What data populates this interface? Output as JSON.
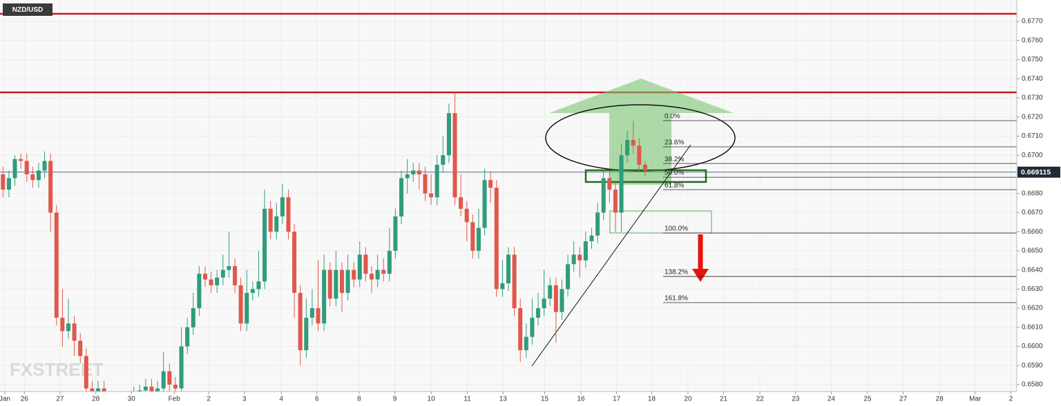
{
  "chart_data": {
    "type": "candlestick",
    "title": "NZD/USD",
    "watermark": "FXSTREET",
    "up_color": "#2f9c7c",
    "down_color": "#e0584b",
    "xlim": [
      -0.5,
      170.5
    ],
    "ylim": [
      0.65764,
      0.67812
    ],
    "grid": true,
    "yticks": [
      {
        "value": 0.658,
        "label": "0.6580"
      },
      {
        "value": 0.659,
        "label": "0.6590"
      },
      {
        "value": 0.66,
        "label": "0.6600"
      },
      {
        "value": 0.661,
        "label": "0.6610"
      },
      {
        "value": 0.662,
        "label": "0.6620"
      },
      {
        "value": 0.663,
        "label": "0.6630"
      },
      {
        "value": 0.664,
        "label": "0.6640"
      },
      {
        "value": 0.665,
        "label": "0.6650"
      },
      {
        "value": 0.666,
        "label": "0.6660"
      },
      {
        "value": 0.667,
        "label": "0.6670"
      },
      {
        "value": 0.668,
        "label": "0.6680"
      },
      {
        "value": 0.669,
        "label": "0.6690"
      },
      {
        "value": 0.67,
        "label": "0.6700"
      },
      {
        "value": 0.671,
        "label": "0.6710"
      },
      {
        "value": 0.672,
        "label": "0.6720"
      },
      {
        "value": 0.673,
        "label": "0.6730"
      },
      {
        "value": 0.674,
        "label": "0.6740"
      },
      {
        "value": 0.675,
        "label": "0.6750"
      },
      {
        "value": 0.676,
        "label": "0.6760"
      },
      {
        "value": 0.677,
        "label": "0.6770"
      }
    ],
    "xticks": [
      {
        "value": 0.3,
        "label": "Jan"
      },
      {
        "value": 3.6,
        "label": "26"
      },
      {
        "value": 9.6,
        "label": "27"
      },
      {
        "value": 15.6,
        "label": "28"
      },
      {
        "value": 21.6,
        "label": "30"
      },
      {
        "value": 28.8,
        "label": "Feb"
      },
      {
        "value": 34.6,
        "label": "2"
      },
      {
        "value": 40.6,
        "label": "3"
      },
      {
        "value": 46.8,
        "label": "4"
      },
      {
        "value": 52.8,
        "label": "6"
      },
      {
        "value": 59.9,
        "label": "8"
      },
      {
        "value": 65.9,
        "label": "9"
      },
      {
        "value": 72.0,
        "label": "10"
      },
      {
        "value": 78.1,
        "label": "11"
      },
      {
        "value": 84.1,
        "label": "13"
      },
      {
        "value": 91.1,
        "label": "15"
      },
      {
        "value": 97.2,
        "label": "16"
      },
      {
        "value": 103.2,
        "label": "17"
      },
      {
        "value": 109.1,
        "label": "18"
      },
      {
        "value": 115.2,
        "label": "20"
      },
      {
        "value": 121.2,
        "label": "21"
      },
      {
        "value": 127.3,
        "label": "22"
      },
      {
        "value": 133.3,
        "label": "23"
      },
      {
        "value": 139.3,
        "label": "24"
      },
      {
        "value": 145.4,
        "label": "25"
      },
      {
        "value": 151.4,
        "label": "27"
      },
      {
        "value": 157.5,
        "label": "28"
      },
      {
        "value": 163.5,
        "label": "Mar"
      },
      {
        "value": 169.5,
        "label": "2"
      }
    ],
    "x": [
      0,
      1,
      2,
      3,
      4,
      5,
      6,
      7,
      8,
      9,
      10,
      11,
      12,
      13,
      14,
      15,
      16,
      17,
      18,
      19,
      20,
      21,
      22,
      23,
      24,
      25,
      26,
      27,
      28,
      29,
      30,
      31,
      32,
      33,
      34,
      35,
      36,
      37,
      38,
      39,
      40,
      41,
      42,
      43,
      44,
      45,
      46,
      47,
      48,
      49,
      50,
      51,
      52,
      53,
      54,
      55,
      56,
      57,
      58,
      59,
      60,
      61,
      62,
      63,
      64,
      65,
      66,
      67,
      68,
      69,
      70,
      71,
      72,
      73,
      74,
      75,
      76,
      77,
      78,
      79,
      80,
      81,
      82,
      83,
      84,
      85,
      86,
      87,
      88,
      89,
      90,
      91,
      92,
      93,
      94,
      95,
      96,
      97,
      98,
      99,
      100,
      101,
      102,
      103,
      104,
      105,
      106,
      107,
      108
    ],
    "ohlc": [
      [
        0.669,
        0.6694,
        0.6678,
        0.6682
      ],
      [
        0.6682,
        0.6692,
        0.6678,
        0.6688
      ],
      [
        0.6688,
        0.67,
        0.6684,
        0.6698
      ],
      [
        0.6698,
        0.6701,
        0.6693,
        0.6697
      ],
      [
        0.6697,
        0.6701,
        0.6686,
        0.669
      ],
      [
        0.669,
        0.6694,
        0.6683,
        0.6687
      ],
      [
        0.6687,
        0.6696,
        0.6683,
        0.6692
      ],
      [
        0.6692,
        0.6702,
        0.6688,
        0.6697
      ],
      [
        0.6697,
        0.6701,
        0.666,
        0.667
      ],
      [
        0.667,
        0.6674,
        0.6611,
        0.6615
      ],
      [
        0.6615,
        0.663,
        0.66,
        0.6608
      ],
      [
        0.6608,
        0.6625,
        0.6604,
        0.6612
      ],
      [
        0.6612,
        0.6616,
        0.6595,
        0.6603
      ],
      [
        0.6603,
        0.6607,
        0.6591,
        0.6595
      ],
      [
        0.6595,
        0.6599,
        0.6574,
        0.6578
      ],
      [
        0.6578,
        0.6582,
        0.6571,
        0.6575
      ],
      [
        0.6575,
        0.6582,
        0.6571,
        0.6578
      ],
      [
        0.6578,
        0.6582,
        0.6568,
        0.6572
      ],
      [
        0.6572,
        0.6576,
        0.6566,
        0.657
      ],
      [
        0.657,
        0.6574,
        0.6564,
        0.6568
      ],
      [
        0.6568,
        0.6574,
        0.6564,
        0.657
      ],
      [
        0.657,
        0.6576,
        0.6566,
        0.6572
      ],
      [
        0.6572,
        0.6579,
        0.6568,
        0.6575
      ],
      [
        0.6575,
        0.658,
        0.6571,
        0.6577
      ],
      [
        0.6577,
        0.6583,
        0.6573,
        0.6579
      ],
      [
        0.6579,
        0.6583,
        0.6572,
        0.6576
      ],
      [
        0.6576,
        0.6582,
        0.6572,
        0.6578
      ],
      [
        0.6578,
        0.6597,
        0.6574,
        0.6587
      ],
      [
        0.6587,
        0.6591,
        0.6576,
        0.658
      ],
      [
        0.658,
        0.6584,
        0.6574,
        0.6578
      ],
      [
        0.6578,
        0.661,
        0.6574,
        0.66
      ],
      [
        0.66,
        0.6615,
        0.6596,
        0.661
      ],
      [
        0.661,
        0.6628,
        0.6606,
        0.662
      ],
      [
        0.662,
        0.6642,
        0.6616,
        0.6638
      ],
      [
        0.6638,
        0.6642,
        0.6631,
        0.6635
      ],
      [
        0.6635,
        0.6639,
        0.6628,
        0.6632
      ],
      [
        0.6632,
        0.664,
        0.6628,
        0.6636
      ],
      [
        0.6636,
        0.6648,
        0.6632,
        0.664
      ],
      [
        0.664,
        0.666,
        0.6636,
        0.6642
      ],
      [
        0.6642,
        0.6646,
        0.6628,
        0.6632
      ],
      [
        0.6632,
        0.6636,
        0.6608,
        0.6612
      ],
      [
        0.6612,
        0.664,
        0.6608,
        0.6628
      ],
      [
        0.6628,
        0.6634,
        0.6624,
        0.663
      ],
      [
        0.663,
        0.665,
        0.6626,
        0.6634
      ],
      [
        0.6634,
        0.6682,
        0.663,
        0.6672
      ],
      [
        0.6672,
        0.6676,
        0.6656,
        0.666
      ],
      [
        0.666,
        0.6675,
        0.6656,
        0.6668
      ],
      [
        0.6668,
        0.6685,
        0.6664,
        0.6678
      ],
      [
        0.6678,
        0.6682,
        0.6656,
        0.666
      ],
      [
        0.666,
        0.6664,
        0.6615,
        0.6628
      ],
      [
        0.6628,
        0.6632,
        0.659,
        0.6598
      ],
      [
        0.6598,
        0.6625,
        0.6594,
        0.6615
      ],
      [
        0.6615,
        0.663,
        0.6611,
        0.662
      ],
      [
        0.662,
        0.6645,
        0.6608,
        0.6612
      ],
      [
        0.6612,
        0.6648,
        0.6608,
        0.664
      ],
      [
        0.664,
        0.6644,
        0.6621,
        0.6625
      ],
      [
        0.6625,
        0.665,
        0.6621,
        0.664
      ],
      [
        0.664,
        0.6644,
        0.6618,
        0.6628
      ],
      [
        0.6628,
        0.6648,
        0.6624,
        0.664
      ],
      [
        0.664,
        0.6644,
        0.6631,
        0.6635
      ],
      [
        0.6635,
        0.6655,
        0.6631,
        0.6648
      ],
      [
        0.6648,
        0.6652,
        0.6634,
        0.6638
      ],
      [
        0.6638,
        0.6642,
        0.6628,
        0.6635
      ],
      [
        0.6635,
        0.6648,
        0.6631,
        0.664
      ],
      [
        0.664,
        0.6646,
        0.6634,
        0.6638
      ],
      [
        0.6638,
        0.6662,
        0.6634,
        0.665
      ],
      [
        0.665,
        0.6672,
        0.6646,
        0.6668
      ],
      [
        0.6668,
        0.6692,
        0.6664,
        0.6688
      ],
      [
        0.6688,
        0.6698,
        0.668,
        0.669
      ],
      [
        0.669,
        0.6696,
        0.6686,
        0.6692
      ],
      [
        0.6692,
        0.6696,
        0.6682,
        0.669
      ],
      [
        0.669,
        0.6694,
        0.6676,
        0.668
      ],
      [
        0.668,
        0.669,
        0.6674,
        0.6678
      ],
      [
        0.6678,
        0.67,
        0.6674,
        0.6695
      ],
      [
        0.6695,
        0.671,
        0.6691,
        0.67
      ],
      [
        0.67,
        0.6727,
        0.6696,
        0.6722
      ],
      [
        0.6722,
        0.6733,
        0.6674,
        0.6678
      ],
      [
        0.6678,
        0.669,
        0.6668,
        0.6672
      ],
      [
        0.6672,
        0.6676,
        0.6655,
        0.6665
      ],
      [
        0.6665,
        0.6669,
        0.6646,
        0.665
      ],
      [
        0.665,
        0.6672,
        0.6646,
        0.6662
      ],
      [
        0.6662,
        0.6693,
        0.6658,
        0.6687
      ],
      [
        0.6687,
        0.6691,
        0.6675,
        0.6683
      ],
      [
        0.6683,
        0.6687,
        0.6626,
        0.663
      ],
      [
        0.663,
        0.6645,
        0.6626,
        0.6633
      ],
      [
        0.6633,
        0.6652,
        0.6629,
        0.6648
      ],
      [
        0.6648,
        0.6652,
        0.6616,
        0.662
      ],
      [
        0.662,
        0.6625,
        0.6592,
        0.6598
      ],
      [
        0.6598,
        0.6612,
        0.6594,
        0.6605
      ],
      [
        0.6605,
        0.6625,
        0.6601,
        0.6615
      ],
      [
        0.6615,
        0.6628,
        0.6611,
        0.662
      ],
      [
        0.662,
        0.664,
        0.6616,
        0.6625
      ],
      [
        0.6625,
        0.6636,
        0.6621,
        0.6632
      ],
      [
        0.6632,
        0.6636,
        0.6602,
        0.6618
      ],
      [
        0.6618,
        0.6635,
        0.6614,
        0.663
      ],
      [
        0.663,
        0.6648,
        0.6626,
        0.6643
      ],
      [
        0.6643,
        0.6655,
        0.6639,
        0.6648
      ],
      [
        0.6648,
        0.6652,
        0.6636,
        0.6645
      ],
      [
        0.6645,
        0.666,
        0.6641,
        0.6655
      ],
      [
        0.6655,
        0.6662,
        0.6651,
        0.6658
      ],
      [
        0.6658,
        0.6675,
        0.6654,
        0.667
      ],
      [
        0.667,
        0.6692,
        0.6666,
        0.6688
      ],
      [
        0.6688,
        0.6692,
        0.6675,
        0.6682
      ],
      [
        0.6682,
        0.6686,
        0.666,
        0.667
      ],
      [
        0.667,
        0.6706,
        0.666,
        0.67
      ],
      [
        0.67,
        0.6713,
        0.6696,
        0.6708
      ],
      [
        0.6708,
        0.6718,
        0.6701,
        0.6705
      ],
      [
        0.6705,
        0.6709,
        0.6691,
        0.6695
      ],
      [
        0.6695,
        0.6697,
        0.6689,
        0.6692
      ]
    ],
    "levels": [
      {
        "price": 0.6774,
        "color": "#c4161c"
      },
      {
        "price": 0.67329,
        "color": "#c4161c"
      }
    ],
    "last_price": 0.669115,
    "fib": [
      {
        "label": "0.0%",
        "price": 0.67181
      },
      {
        "label": "23.6%",
        "price": 0.67044
      },
      {
        "label": "38.2%",
        "price": 0.66957
      },
      {
        "label": "50.0%",
        "price": 0.66885
      },
      {
        "label": "61.8%",
        "price": 0.6682
      },
      {
        "label": "100.0%",
        "price": 0.66593
      },
      {
        "label": "138.2%",
        "price": 0.66366
      },
      {
        "label": "161.8%",
        "price": 0.66229
      }
    ]
  }
}
